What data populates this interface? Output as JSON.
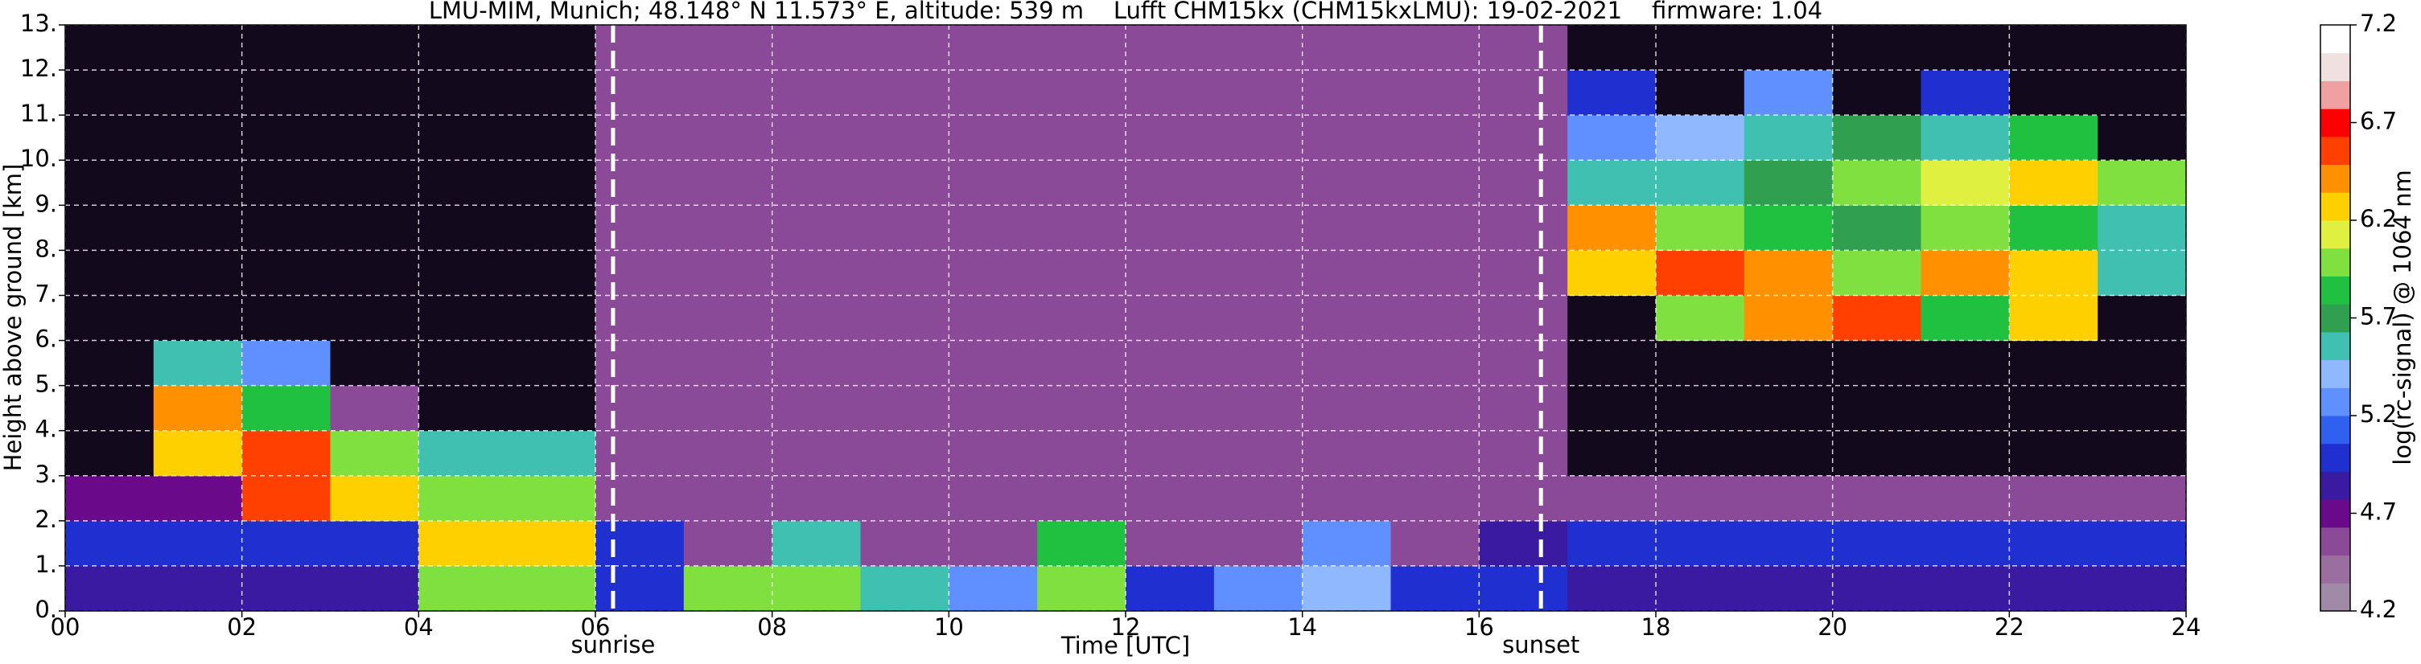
{
  "chart_data": {
    "type": "heatmap",
    "title": "LMU-MIM, Munich; 48.148° N 11.573° E, altitude: 539 m    Lufft CHM15kx (CHM15kxLMU): 19-02-2021    firmware: 1.04",
    "xlabel": "Time [UTC]",
    "ylabel": "Height above ground [km]",
    "colorbar_label": "log(rc-signal) @ 1064 nm",
    "xlim": [
      0,
      24
    ],
    "ylim": [
      0,
      13
    ],
    "xticks": [
      {
        "value": 0,
        "label": "00"
      },
      {
        "value": 2,
        "label": "02"
      },
      {
        "value": 4,
        "label": "04"
      },
      {
        "value": 6,
        "label": "06"
      },
      {
        "value": 8,
        "label": "08"
      },
      {
        "value": 10,
        "label": "10"
      },
      {
        "value": 12,
        "label": "12"
      },
      {
        "value": 14,
        "label": "14"
      },
      {
        "value": 16,
        "label": "16"
      },
      {
        "value": 18,
        "label": "18"
      },
      {
        "value": 20,
        "label": "20"
      },
      {
        "value": 22,
        "label": "22"
      },
      {
        "value": 24,
        "label": "24"
      }
    ],
    "yticks": [
      {
        "value": 0,
        "label": "0."
      },
      {
        "value": 1,
        "label": "1."
      },
      {
        "value": 2,
        "label": "2."
      },
      {
        "value": 3,
        "label": "3."
      },
      {
        "value": 4,
        "label": "4."
      },
      {
        "value": 5,
        "label": "5."
      },
      {
        "value": 6,
        "label": "6."
      },
      {
        "value": 7,
        "label": "7."
      },
      {
        "value": 8,
        "label": "8."
      },
      {
        "value": 9,
        "label": "9."
      },
      {
        "value": 10,
        "label": "10."
      },
      {
        "value": 11,
        "label": "11."
      },
      {
        "value": 12,
        "label": "12."
      },
      {
        "value": 13,
        "label": "13."
      }
    ],
    "grid": true,
    "vlines": [
      {
        "x": 6.2,
        "label": "sunrise"
      },
      {
        "x": 16.7,
        "label": "sunset"
      }
    ],
    "clim": [
      4.2,
      7.2
    ],
    "cticks": [
      4.2,
      4.7,
      5.2,
      5.7,
      6.2,
      6.7,
      7.2
    ],
    "colormap": [
      "#a08aa8",
      "#9a6fa0",
      "#8a4a98",
      "#6a0a8a",
      "#3a1aa0",
      "#2030d0",
      "#3060f0",
      "#6090ff",
      "#90b8ff",
      "#40c0b0",
      "#30a050",
      "#20c040",
      "#80e040",
      "#e0f040",
      "#ffd000",
      "#ff9000",
      "#ff4000",
      "#ff0000",
      "#f0a0a0",
      "#f0e0e0",
      "#ffffff"
    ],
    "nan_color": "#120a1c",
    "x": [
      0.5,
      1.5,
      2.5,
      3.5,
      4.5,
      5.5,
      6.5,
      7.5,
      8.5,
      9.5,
      10.5,
      11.5,
      12.5,
      13.5,
      14.5,
      15.5,
      16.5,
      17.5,
      18.5,
      19.5,
      20.5,
      21.5,
      22.5,
      23.5
    ],
    "y": [
      0.5,
      1.5,
      2.5,
      3.5,
      4.5,
      5.5,
      6.5,
      7.5,
      8.5,
      9.5,
      10.5,
      11.5,
      12.5
    ],
    "z": [
      [
        4.8,
        4.8,
        4.8,
        4.8,
        6.0,
        6.0,
        5.0,
        6.0,
        6.0,
        5.5,
        5.3,
        6.0,
        5.0,
        5.2,
        5.4,
        5.0,
        5.0,
        4.9,
        4.9,
        4.9,
        4.9,
        4.9,
        4.9,
        4.9
      ],
      [
        5.0,
        5.0,
        5.0,
        5.0,
        6.2,
        6.2,
        5.0,
        4.6,
        5.6,
        4.6,
        4.6,
        5.8,
        4.6,
        4.6,
        5.3,
        4.6,
        4.9,
        5.0,
        5.0,
        5.0,
        5.0,
        5.0,
        5.0,
        5.0
      ],
      [
        4.7,
        4.7,
        6.5,
        6.3,
        6.0,
        6.0,
        4.5,
        4.5,
        4.5,
        4.5,
        4.5,
        4.5,
        4.5,
        4.5,
        4.5,
        4.5,
        4.5,
        4.6,
        4.6,
        4.6,
        4.6,
        4.6,
        4.6,
        4.6
      ],
      [
        null,
        6.3,
        6.6,
        6.0,
        5.6,
        5.6,
        4.5,
        4.5,
        4.5,
        4.5,
        4.5,
        4.5,
        4.5,
        4.5,
        4.5,
        4.5,
        4.5,
        null,
        null,
        null,
        null,
        null,
        null,
        null
      ],
      [
        null,
        6.4,
        5.8,
        4.6,
        null,
        null,
        4.5,
        4.5,
        4.5,
        4.5,
        4.5,
        4.5,
        4.5,
        4.5,
        4.5,
        4.5,
        4.5,
        null,
        null,
        null,
        null,
        null,
        null,
        null
      ],
      [
        null,
        5.5,
        5.3,
        null,
        null,
        null,
        4.5,
        4.5,
        4.5,
        4.5,
        4.5,
        4.5,
        4.5,
        4.5,
        4.5,
        4.5,
        4.5,
        null,
        null,
        null,
        null,
        null,
        null,
        null
      ],
      [
        null,
        null,
        null,
        null,
        null,
        null,
        4.5,
        4.5,
        4.5,
        4.5,
        4.5,
        4.5,
        4.5,
        4.5,
        4.5,
        4.5,
        4.5,
        null,
        6.0,
        6.4,
        6.5,
        5.8,
        6.3,
        null
      ],
      [
        null,
        null,
        null,
        null,
        null,
        null,
        4.5,
        4.5,
        4.5,
        4.5,
        4.5,
        4.5,
        4.5,
        4.5,
        4.5,
        4.5,
        4.5,
        6.3,
        6.5,
        6.4,
        6.0,
        6.4,
        6.2,
        5.6
      ],
      [
        null,
        null,
        null,
        null,
        null,
        null,
        4.5,
        4.5,
        4.5,
        4.5,
        4.5,
        4.5,
        4.5,
        4.5,
        4.5,
        4.5,
        4.5,
        6.4,
        6.0,
        5.8,
        5.7,
        6.0,
        5.8,
        5.5
      ],
      [
        null,
        null,
        null,
        null,
        null,
        null,
        4.5,
        4.5,
        4.5,
        4.5,
        4.5,
        4.5,
        4.5,
        4.5,
        4.5,
        4.5,
        4.5,
        5.5,
        5.6,
        5.7,
        6.0,
        6.1,
        6.2,
        6.0
      ],
      [
        null,
        null,
        null,
        null,
        null,
        null,
        4.5,
        4.5,
        4.5,
        4.5,
        4.5,
        4.5,
        4.5,
        4.5,
        4.5,
        4.5,
        4.5,
        5.3,
        5.4,
        5.6,
        5.7,
        5.5,
        5.8,
        null
      ],
      [
        null,
        null,
        null,
        null,
        null,
        null,
        4.5,
        4.5,
        4.5,
        4.5,
        4.5,
        4.5,
        4.5,
        4.5,
        4.5,
        4.5,
        4.5,
        5.0,
        null,
        5.2,
        null,
        5.0,
        null,
        null
      ],
      [
        null,
        null,
        null,
        null,
        null,
        null,
        4.5,
        4.5,
        4.5,
        4.5,
        4.5,
        4.5,
        4.5,
        4.5,
        4.5,
        4.5,
        4.5,
        null,
        null,
        null,
        null,
        null,
        null,
        null
      ]
    ]
  }
}
